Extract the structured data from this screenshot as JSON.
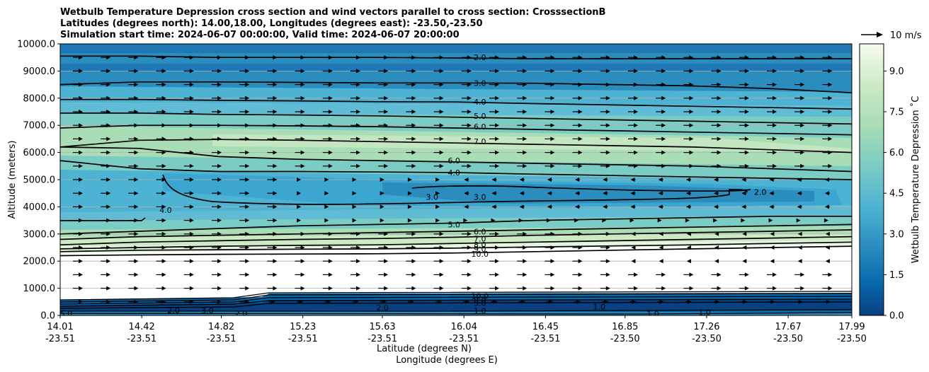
{
  "chart_data": {
    "type": "contourf",
    "title": [
      "Wetbulb Temperature Depression cross section and wind vectors parallel to cross section: CrosssectionB",
      "Latitudes (degrees north): 14.00,18.00, Longitudes (degrees east): -23.50,-23.50",
      "Simulation start time: 2024-06-07 00:00:00, Valid time: 2024-06-07 20:00:00"
    ],
    "xlabel": "Latitude (degrees N)",
    "xlabel2": "Longitude (degrees E)",
    "ylabel": "Altitude (meters)",
    "ylim": [
      0,
      10000
    ],
    "yticks": [
      "0.0",
      "1000.0",
      "2000.0",
      "3000.0",
      "4000.0",
      "5000.0",
      "6000.0",
      "7000.0",
      "8000.0",
      "9000.0",
      "10000.0"
    ],
    "xticks_lat": [
      "14.01",
      "14.42",
      "14.82",
      "15.23",
      "15.63",
      "16.04",
      "16.45",
      "16.85",
      "17.26",
      "17.67",
      "17.99"
    ],
    "xticks_lon": [
      "-23.51",
      "-23.51",
      "-23.51",
      "-23.51",
      "-23.51",
      "-23.51",
      "-23.51",
      "-23.50",
      "-23.50",
      "-23.50",
      "-23.50"
    ],
    "grid_y": true,
    "colorbar": {
      "label": "Wetbulb Temperature Depression ˚C",
      "range": [
        0,
        10
      ],
      "ticks": [
        "0.0",
        "1.5",
        "3.0",
        "4.5",
        "6.0",
        "7.5",
        "9.0"
      ],
      "colormap": "GnBu_r"
    },
    "quiver_key": {
      "label": "10 m/s"
    },
    "contour_labels": [
      {
        "text": "2.0",
        "x_lat": 16.12,
        "alt": 9500
      },
      {
        "text": "3.0",
        "x_lat": 16.12,
        "alt": 8560
      },
      {
        "text": "4.0",
        "x_lat": 16.12,
        "alt": 7870
      },
      {
        "text": "5.0",
        "x_lat": 16.12,
        "alt": 7350
      },
      {
        "text": "6.0",
        "x_lat": 16.12,
        "alt": 6950
      },
      {
        "text": "7.0",
        "x_lat": 16.12,
        "alt": 6400
      },
      {
        "text": "6.0",
        "x_lat": 15.99,
        "alt": 5700
      },
      {
        "text": "4.0",
        "x_lat": 15.99,
        "alt": 5260
      },
      {
        "text": "3.0",
        "x_lat": 15.88,
        "alt": 4360
      },
      {
        "text": "3.0",
        "x_lat": 16.12,
        "alt": 4360
      },
      {
        "text": "4.0",
        "x_lat": 14.54,
        "alt": 3880
      },
      {
        "text": "2.0",
        "x_lat": 17.53,
        "alt": 4550
      },
      {
        "text": "5.0",
        "x_lat": 15.99,
        "alt": 3350
      },
      {
        "text": "6.0",
        "x_lat": 16.12,
        "alt": 3080
      },
      {
        "text": "7.0",
        "x_lat": 16.12,
        "alt": 2830
      },
      {
        "text": "8.0",
        "x_lat": 16.12,
        "alt": 2600
      },
      {
        "text": "9.0",
        "x_lat": 16.12,
        "alt": 2450
      },
      {
        "text": "10.0",
        "x_lat": 16.12,
        "alt": 2270
      },
      {
        "text": "10.0",
        "x_lat": 16.12,
        "alt": 720
      },
      {
        "text": "8.0",
        "x_lat": 16.12,
        "alt": 560
      },
      {
        "text": "3.0",
        "x_lat": 16.12,
        "alt": 460
      },
      {
        "text": "2.0",
        "x_lat": 15.63,
        "alt": 280
      },
      {
        "text": "1.0",
        "x_lat": 16.12,
        "alt": 170
      },
      {
        "text": "1.0",
        "x_lat": 16.72,
        "alt": 320
      },
      {
        "text": "1.0",
        "x_lat": 16.99,
        "alt": 60
      },
      {
        "text": "1.0",
        "x_lat": 17.25,
        "alt": 120
      },
      {
        "text": "2.0",
        "x_lat": 14.58,
        "alt": 200
      },
      {
        "text": "3.0",
        "x_lat": 14.75,
        "alt": 180
      },
      {
        "text": "2.0",
        "x_lat": 14.92,
        "alt": 80
      },
      {
        "text": "5.0",
        "x_lat": 14.04,
        "alt": 80
      }
    ],
    "isolines": [
      {
        "level": 2.0,
        "alt": [
          9550,
          9550,
          9500,
          9500,
          9500,
          9480,
          9450,
          9450,
          9450,
          9450,
          9450
        ]
      },
      {
        "level": 3.0,
        "alt": [
          8500,
          8600,
          8600,
          8580,
          8560,
          8560,
          8550,
          8500,
          8450,
          8350,
          8200
        ]
      },
      {
        "level": 4.0,
        "alt": [
          7950,
          7950,
          7920,
          7900,
          7870,
          7860,
          7800,
          7750,
          7700,
          7650,
          7600
        ]
      },
      {
        "level": 5.0,
        "alt": [
          7450,
          7450,
          7400,
          7380,
          7350,
          7300,
          7250,
          7200,
          7150,
          7100,
          7050
        ]
      },
      {
        "level": 6.0,
        "alt": [
          6900,
          7000,
          7000,
          6980,
          6950,
          6900,
          6850,
          6800,
          6750,
          6700,
          6650
        ]
      },
      {
        "level": 7.0,
        "alt": [
          6200,
          6450,
          6480,
          6450,
          6400,
          6350,
          6300,
          6250,
          6200,
          6100,
          6000
        ]
      },
      {
        "level": 6.0,
        "alt": [
          6200,
          6150,
          5850,
          5750,
          5700,
          5650,
          5600,
          5550,
          5500,
          5400,
          5300
        ]
      },
      {
        "level": 4.0,
        "alt": [
          5700,
          5400,
          5300,
          5300,
          5280,
          5260,
          5200,
          5150,
          5100,
          5050,
          5000
        ]
      },
      {
        "level": 5.0,
        "alt": [
          3000,
          3100,
          3200,
          3300,
          3350,
          3400,
          3500,
          3550,
          3600,
          3650,
          3650
        ]
      },
      {
        "level": 6.0,
        "alt": [
          2800,
          2900,
          2950,
          3000,
          3050,
          3100,
          3150,
          3200,
          3250,
          3300,
          3350
        ]
      },
      {
        "level": 7.0,
        "alt": [
          2600,
          2700,
          2750,
          2800,
          2830,
          2880,
          2950,
          3000,
          3050,
          3100,
          3150
        ]
      },
      {
        "level": 8.0,
        "alt": [
          2450,
          2500,
          2550,
          2580,
          2600,
          2650,
          2700,
          2750,
          2800,
          2850,
          2900
        ]
      },
      {
        "level": 9.0,
        "alt": [
          2350,
          2400,
          2420,
          2440,
          2450,
          2480,
          2520,
          2560,
          2600,
          2650,
          2700
        ]
      },
      {
        "level": 10.0,
        "alt": [
          2200,
          2230,
          2250,
          2260,
          2270,
          2300,
          2350,
          2400,
          2450,
          2500,
          2550
        ]
      }
    ]
  }
}
